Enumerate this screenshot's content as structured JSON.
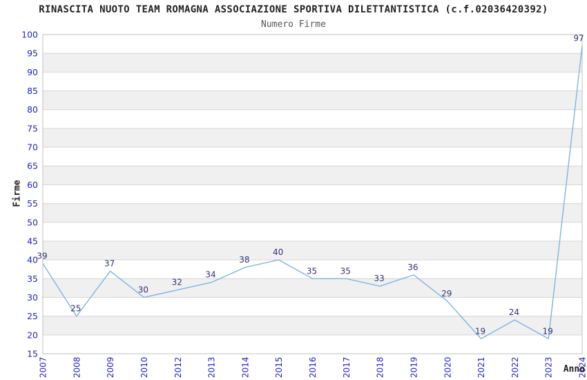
{
  "chart_data": {
    "type": "line",
    "title": "RINASCITA NUOTO TEAM ROMAGNA ASSOCIAZIONE SPORTIVA DILETTANTISTICA (c.f.02036420392)",
    "subtitle": "Numero Firme",
    "xlabel": "Anno",
    "ylabel": "Firme",
    "categories": [
      "2007",
      "2008",
      "2009",
      "2010",
      "2012",
      "2013",
      "2014",
      "2015",
      "2016",
      "2017",
      "2018",
      "2019",
      "2020",
      "2021",
      "2022",
      "2023",
      "2024"
    ],
    "values": [
      39,
      25,
      37,
      30,
      32,
      34,
      38,
      40,
      35,
      35,
      33,
      36,
      29,
      19,
      24,
      19,
      97
    ],
    "ylim": [
      15,
      100
    ],
    "ytick_step": 5,
    "grid": "horizontal",
    "alternating_bands": true,
    "legend": "none",
    "x_tick_rotation": -90,
    "colors": {
      "line": "#7fb2e6",
      "tick_label": "#2222cc",
      "data_label": "#333377",
      "band": "#f0f0f0",
      "band_alt": "#ffffff",
      "gridline": "#d6d6d6",
      "plot_border": "#c0c0c0",
      "title": "#222222",
      "subtitle": "#555555",
      "axis_title": "#222222"
    }
  }
}
